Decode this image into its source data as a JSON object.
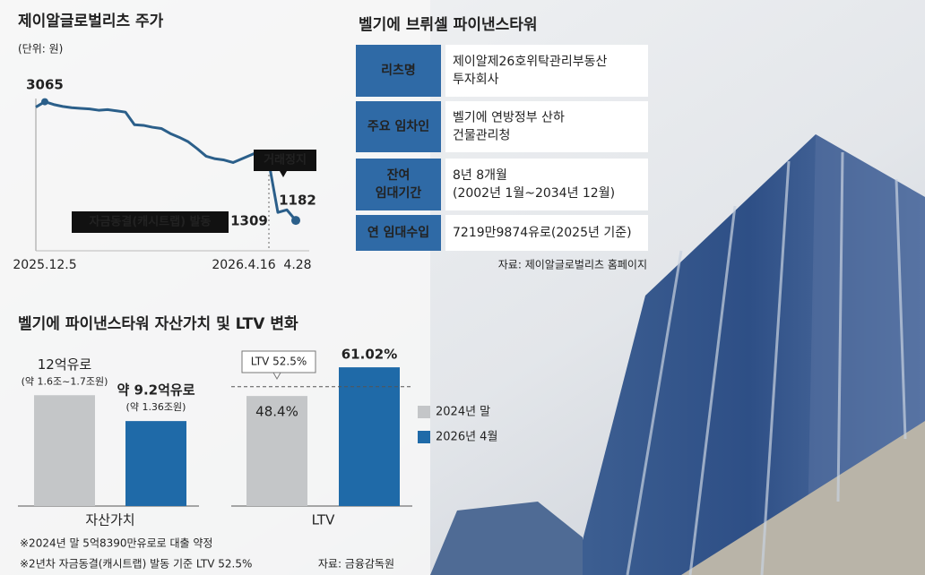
{
  "chart_data": [
    {
      "type": "line",
      "title": "제이알글로벌리츠 주가",
      "subtitle": "(단위: 원)",
      "categories": [
        "2025.12.5",
        null,
        null,
        null,
        null,
        null,
        null,
        null,
        null,
        null,
        null,
        null,
        null,
        null,
        null,
        null,
        null,
        null,
        null,
        null,
        null,
        null,
        null,
        null,
        null,
        null,
        "2026.4.16",
        null,
        null,
        "4.28"
      ],
      "series": [
        {
          "name": "주가",
          "color": "#2b5f8a",
          "values": [
            2980,
            3065,
            3020,
            2990,
            2970,
            2960,
            2950,
            2930,
            2940,
            2920,
            2900,
            2700,
            2690,
            2660,
            2640,
            2560,
            2500,
            2430,
            2320,
            2200,
            2160,
            2140,
            2100,
            2160,
            2220,
            2280,
            2100,
            1309,
            1350,
            1182
          ]
        }
      ],
      "ylim": [
        700,
        3400
      ],
      "annotations": [
        "거래정지",
        "자금동결(캐시트랩) 발동"
      ]
    },
    {
      "type": "bar",
      "title": "벨기에 파이낸스타워 자산가치 및 LTV 변화",
      "categories": [
        "자산가치"
      ],
      "series": [
        {
          "name": "2024년 말",
          "color": "#c4c6c8",
          "values": [
            12
          ],
          "value_labels": [
            "12억유로"
          ],
          "notes": [
            "(약 1.6조~1.7조원)"
          ]
        },
        {
          "name": "2026년 4월",
          "color": "#1f6aa8",
          "values": [
            9.2
          ],
          "value_labels": [
            "약 9.2억유로"
          ],
          "notes": [
            "(약 1.36조원)"
          ]
        }
      ],
      "ylim": [
        0,
        16
      ]
    },
    {
      "type": "bar",
      "categories": [
        "LTV"
      ],
      "series": [
        {
          "name": "2024년 말",
          "color": "#c4c6c8",
          "values": [
            48.4
          ],
          "value_labels": [
            "48.4%"
          ]
        },
        {
          "name": "2026년 4월",
          "color": "#1f6aa8",
          "values": [
            61.02
          ],
          "value_labels": [
            "61.02%"
          ]
        }
      ],
      "ylim": [
        0,
        65
      ],
      "reference": {
        "value": 52.5,
        "label": "LTV 52.5%"
      },
      "legend": "right"
    }
  ],
  "table": {
    "title": "벨기에 브뤼셀 파이낸스타워",
    "rows": [
      [
        [
          "리츠명"
        ],
        [
          "제이알제26호위탁관리부동산",
          "투자회사"
        ]
      ],
      [
        [
          "주요 임차인"
        ],
        [
          "벨기에 연방정부 산하",
          "건물관리청"
        ]
      ],
      [
        [
          "잔여",
          "임대기간"
        ],
        [
          "8년 8개월",
          "(2002년 1월~2034년 12월)"
        ]
      ],
      [
        [
          "연 임대수입"
        ],
        [
          "7219만9874유로(2025년 기준)"
        ]
      ]
    ],
    "source": "자료: 제이알글로벌리츠 홈페이지"
  },
  "footnotes": [
    "※2024년 말 5억8390만유로로 대출 약정",
    "※2년차 자금동결(캐시트랩) 발동 기준 LTV 52.5%"
  ],
  "source": "자료: 금융감독원"
}
